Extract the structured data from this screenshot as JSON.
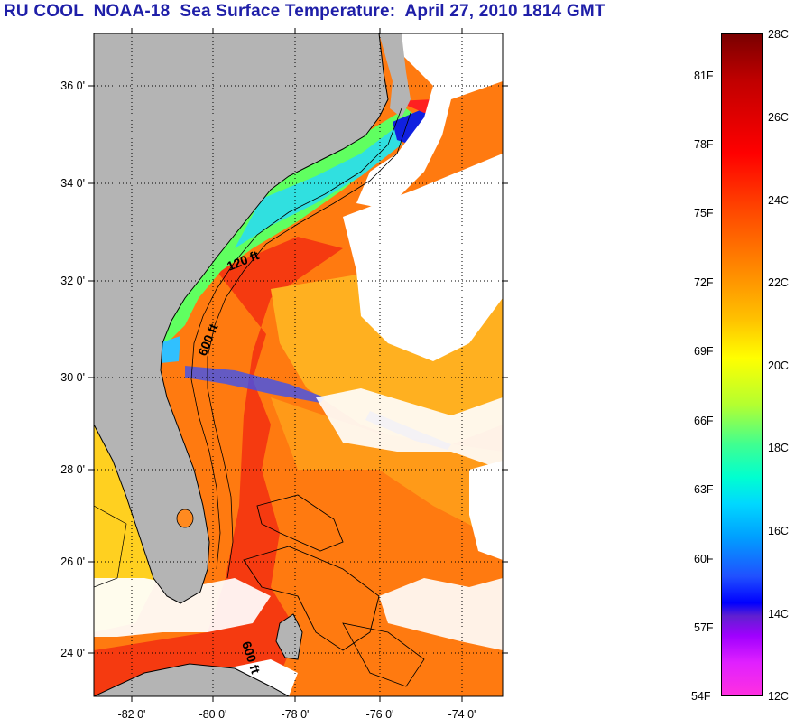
{
  "title": "RU COOL  NOAA-18  Sea Surface Temperature:  April 27, 2010 1814 GMT",
  "map": {
    "lat_labels": [
      "36 0'",
      "34 0'",
      "32 0'",
      "30 0'",
      "28 0'",
      "26 0'",
      "24 0'"
    ],
    "lon_labels": [
      "-82 0'",
      "-80 0'",
      "-78 0'",
      "-76 0'",
      "-74 0'"
    ],
    "contour_labels": [
      "120 ft",
      "600 ft",
      "600 ft"
    ],
    "land_color": "#b4b4b4",
    "cloud_color": "#ffffff"
  },
  "colorbar": {
    "fahrenheit_labels": [
      "81F",
      "78F",
      "75F",
      "72F",
      "69F",
      "66F",
      "63F",
      "60F",
      "57F",
      "54F"
    ],
    "celsius_labels": [
      "28C",
      "26C",
      "24C",
      "22C",
      "20C",
      "18C",
      "16C",
      "14C",
      "12C"
    ],
    "scale": "jet-like: magenta (cold) to dark red (warm)"
  }
}
